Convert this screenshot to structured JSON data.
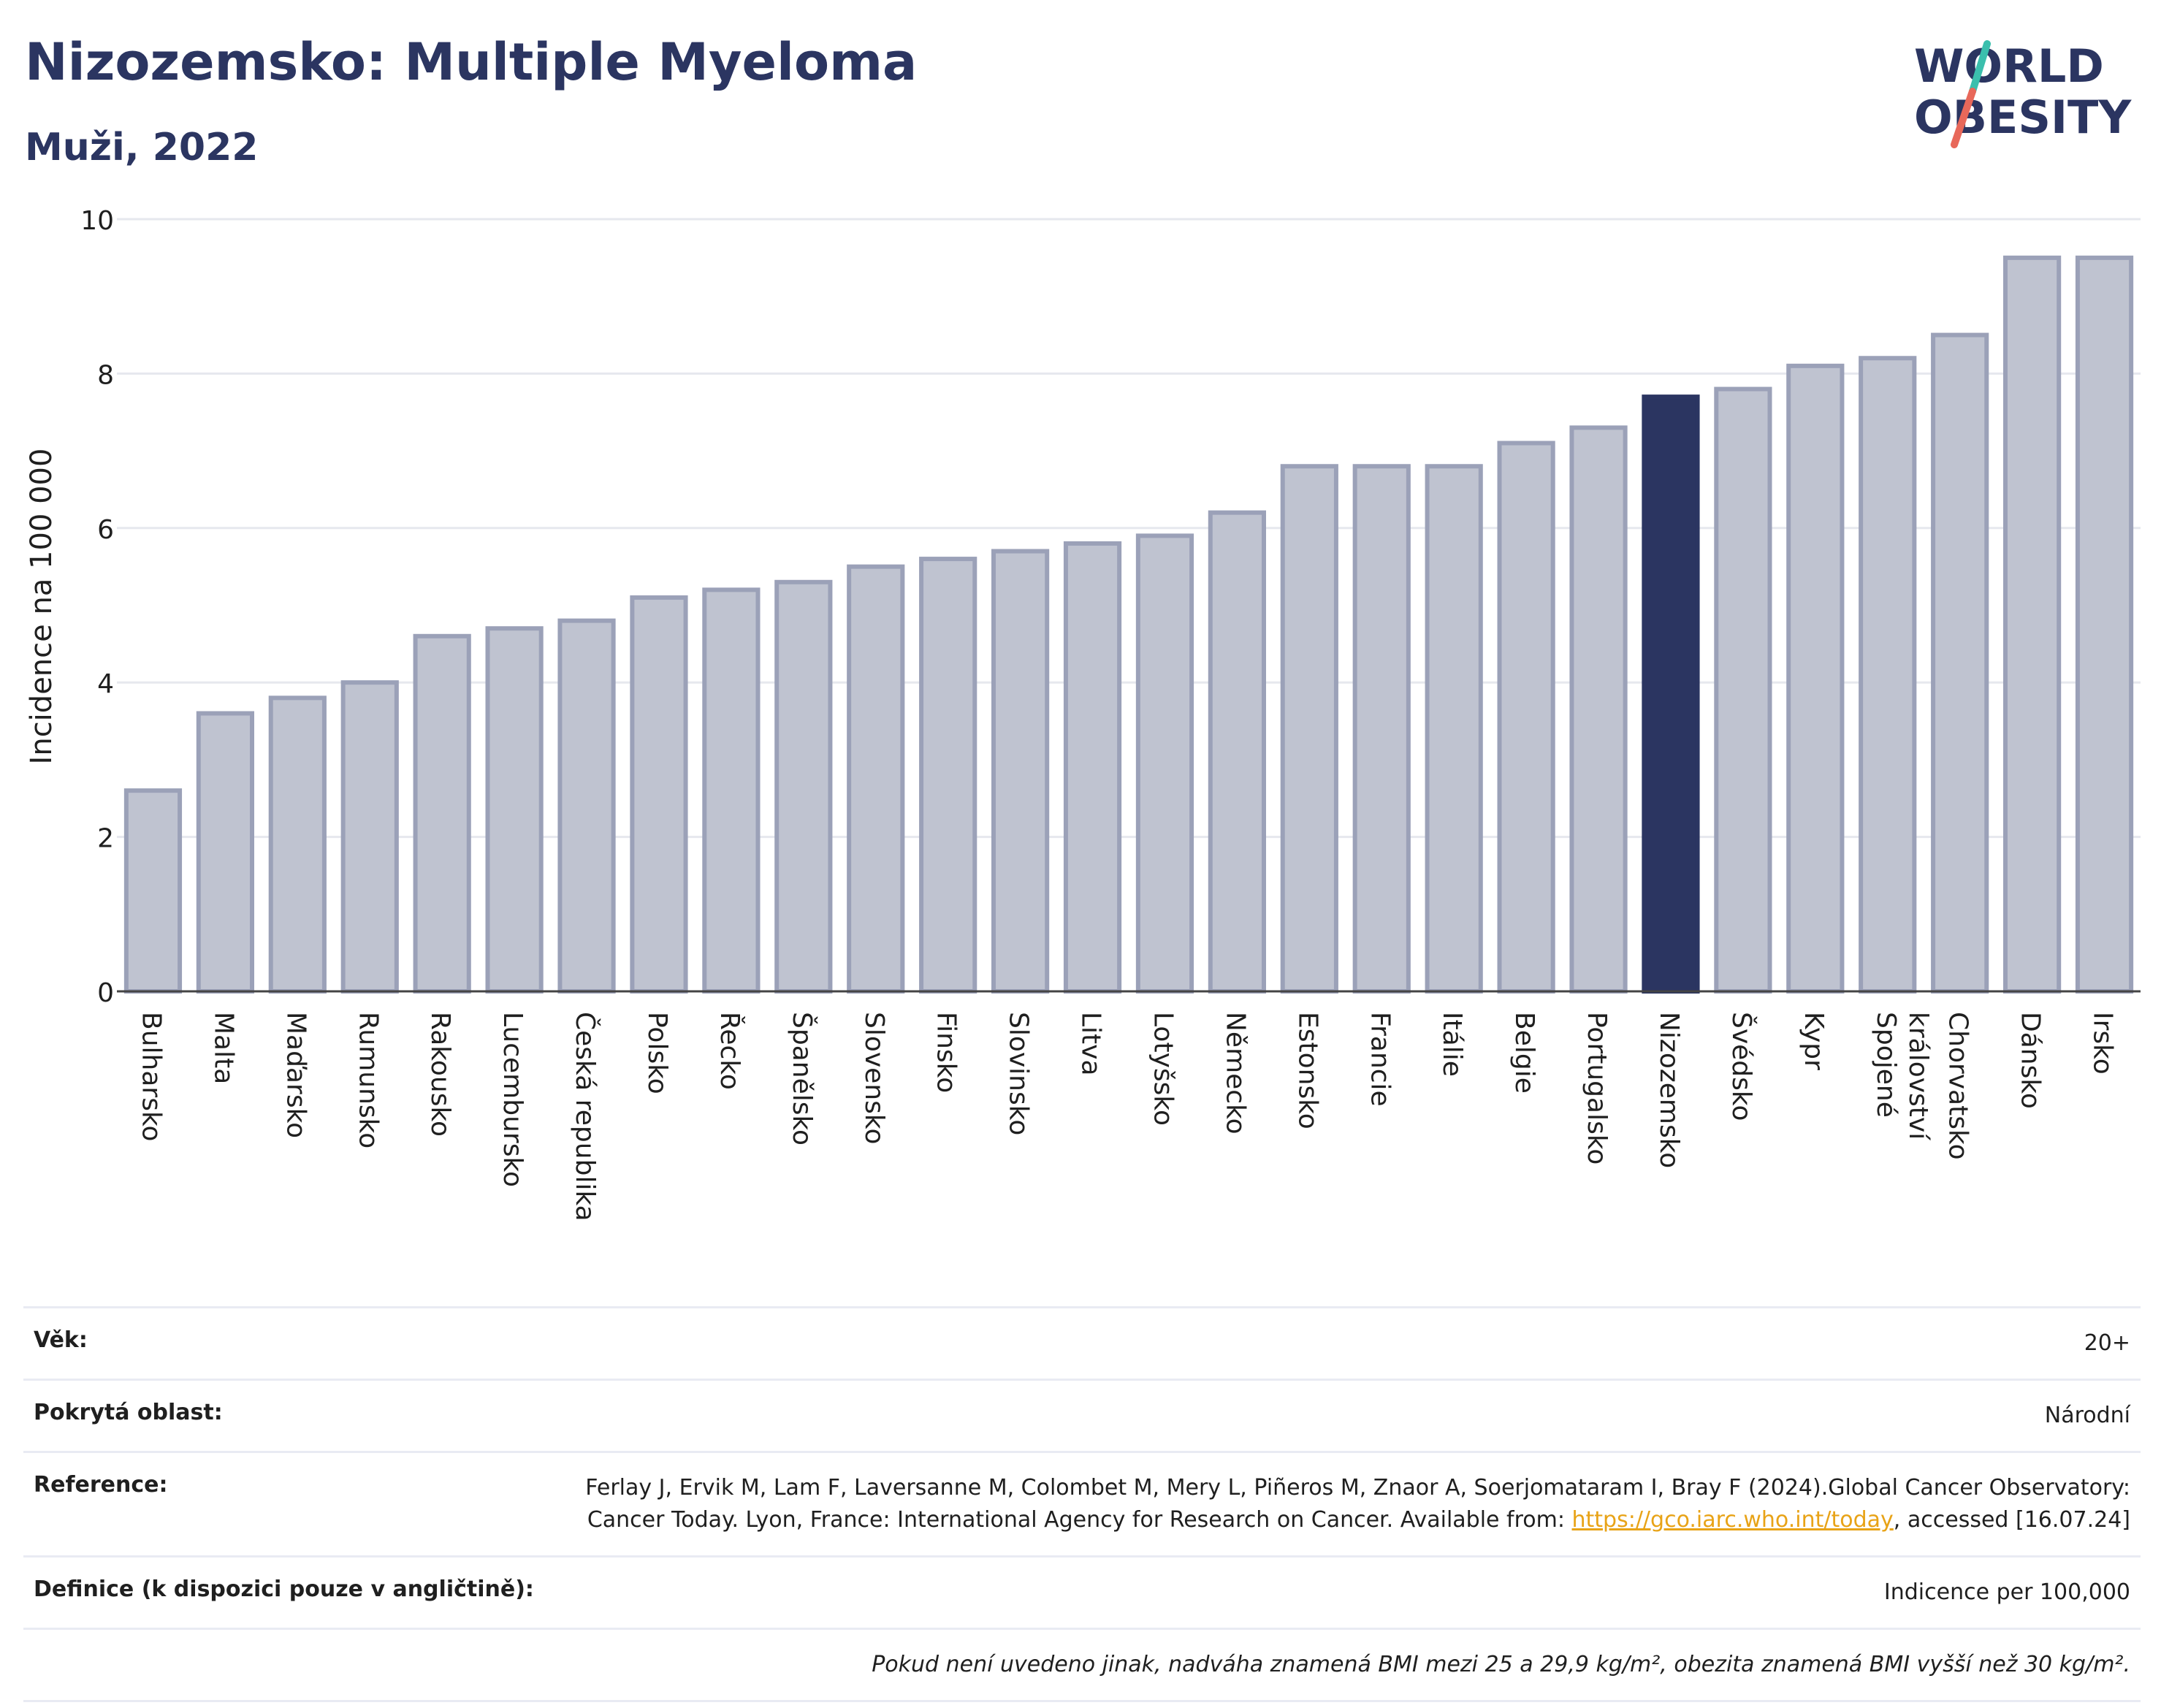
{
  "header": {
    "title": "Nizozemsko: Multiple Myeloma",
    "subtitle": "Muži, 2022",
    "logo_line1": "WORLD",
    "logo_line2": "OBESITY"
  },
  "colors": {
    "bar_default": "#bfc3d0",
    "bar_default_border": "#9ba1b8",
    "bar_highlight": "#2b3561",
    "title": "#2b3561",
    "logo_slash_top": "#3bbfad",
    "logo_slash_bottom": "#e8685a"
  },
  "chart_data": {
    "type": "bar",
    "ylabel": "Incidence na 100 000",
    "xlabel": "",
    "ylim": [
      0,
      10
    ],
    "yticks": [
      0,
      2,
      4,
      6,
      8,
      10
    ],
    "grid": true,
    "highlight": "Nizozemsko",
    "categories": [
      "Bulharsko",
      "Malta",
      "Maďarsko",
      "Rumunsko",
      "Rakousko",
      "Lucembursko",
      "Česká republika",
      "Polsko",
      "Řecko",
      "Španělsko",
      "Slovensko",
      "Finsko",
      "Slovinsko",
      "Litva",
      "Lotyšsko",
      "Německo",
      "Estonsko",
      "Francie",
      "Itálie",
      "Belgie",
      "Portugalsko",
      "Nizozemsko",
      "Švédsko",
      "Kypr",
      "Spojené království",
      "Chorvatsko",
      "Dánsko",
      "Irsko"
    ],
    "values": [
      2.6,
      3.6,
      3.8,
      4.0,
      4.6,
      4.7,
      4.8,
      5.1,
      5.2,
      5.3,
      5.5,
      5.6,
      5.7,
      5.8,
      5.9,
      6.2,
      6.8,
      6.8,
      6.8,
      7.1,
      7.3,
      7.7,
      7.8,
      8.1,
      8.2,
      8.5,
      9.5,
      9.5
    ]
  },
  "info": {
    "age_label": "Věk:",
    "age_value": "20+",
    "area_label": "Pokrytá oblast:",
    "area_value": "Národní",
    "reference_label": "Reference:",
    "reference_text": "Ferlay J, Ervik M, Lam F, Laversanne M, Colombet M, Mery L, Piñeros M, Znaor A, Soerjomataram I, Bray F (2024).Global Cancer Observatory: Cancer Today. Lyon, France: International Agency for Research on Cancer. Available from: ",
    "reference_link": "https://gco.iarc.who.int/today",
    "reference_suffix": ", accessed [16.07.24]",
    "definition_label": "Definice (k dispozici pouze v angličtině):",
    "definition_value": "Indicence per 100,000",
    "footnote": "Pokud není uvedeno jinak, nadváha znamená BMI mezi 25 a 29,9 kg/m², obezita znamená BMI vyšší než 30 kg/m²."
  }
}
